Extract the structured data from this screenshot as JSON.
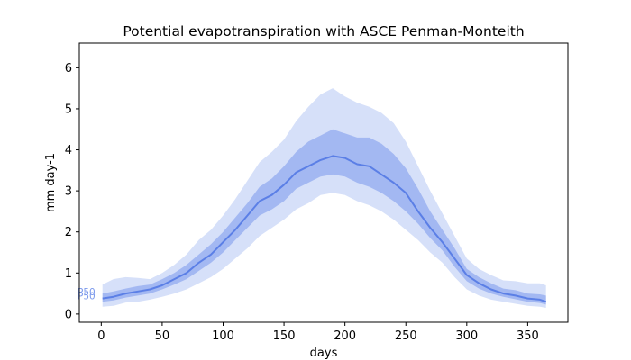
{
  "chart_data": {
    "type": "area",
    "title": "Potential evapotranspiration with ASCE Penman-Monteith",
    "xlabel": "days",
    "ylabel": "mm day-1",
    "xlim": [
      -18,
      383
    ],
    "ylim": [
      -0.2,
      6.6
    ],
    "xticks": [
      0,
      50,
      100,
      150,
      200,
      250,
      300,
      350
    ],
    "yticks": [
      0,
      1,
      2,
      3,
      4,
      5,
      6
    ],
    "grid": false,
    "colors": {
      "line": "#5b7fe6",
      "inner_band": "#7a98ec",
      "outer_band": "#c8d5f7"
    },
    "series_labels": [
      "P50",
      "P50"
    ],
    "x": [
      1,
      10,
      20,
      30,
      40,
      50,
      60,
      70,
      80,
      90,
      100,
      110,
      120,
      130,
      140,
      150,
      160,
      170,
      180,
      190,
      200,
      210,
      220,
      230,
      240,
      250,
      260,
      270,
      280,
      290,
      300,
      310,
      320,
      330,
      340,
      350,
      360,
      365
    ],
    "median": [
      0.38,
      0.42,
      0.5,
      0.55,
      0.6,
      0.7,
      0.85,
      1.0,
      1.25,
      1.45,
      1.75,
      2.05,
      2.4,
      2.75,
      2.9,
      3.15,
      3.45,
      3.6,
      3.75,
      3.85,
      3.8,
      3.65,
      3.6,
      3.4,
      3.2,
      2.95,
      2.5,
      2.1,
      1.75,
      1.35,
      0.95,
      0.75,
      0.6,
      0.5,
      0.45,
      0.38,
      0.35,
      0.3
    ],
    "p25": [
      0.3,
      0.33,
      0.4,
      0.45,
      0.5,
      0.6,
      0.72,
      0.85,
      1.05,
      1.25,
      1.5,
      1.8,
      2.1,
      2.4,
      2.55,
      2.75,
      3.05,
      3.2,
      3.35,
      3.4,
      3.35,
      3.2,
      3.1,
      2.95,
      2.75,
      2.5,
      2.2,
      1.85,
      1.55,
      1.15,
      0.8,
      0.62,
      0.5,
      0.42,
      0.36,
      0.3,
      0.27,
      0.23
    ],
    "p75": [
      0.5,
      0.55,
      0.62,
      0.68,
      0.72,
      0.85,
      1.0,
      1.2,
      1.45,
      1.7,
      2.0,
      2.35,
      2.7,
      3.1,
      3.3,
      3.6,
      3.95,
      4.2,
      4.35,
      4.5,
      4.4,
      4.3,
      4.3,
      4.15,
      3.9,
      3.55,
      3.05,
      2.5,
      2.05,
      1.6,
      1.1,
      0.9,
      0.75,
      0.62,
      0.58,
      0.5,
      0.48,
      0.45
    ],
    "p5": [
      0.18,
      0.2,
      0.28,
      0.3,
      0.35,
      0.42,
      0.5,
      0.6,
      0.75,
      0.9,
      1.1,
      1.35,
      1.6,
      1.9,
      2.1,
      2.3,
      2.55,
      2.7,
      2.9,
      2.95,
      2.9,
      2.75,
      2.65,
      2.5,
      2.3,
      2.05,
      1.8,
      1.5,
      1.25,
      0.9,
      0.6,
      0.45,
      0.35,
      0.3,
      0.25,
      0.2,
      0.18,
      0.15
    ],
    "p95": [
      0.72,
      0.85,
      0.9,
      0.88,
      0.85,
      1.0,
      1.2,
      1.45,
      1.8,
      2.05,
      2.4,
      2.8,
      3.25,
      3.7,
      3.95,
      4.25,
      4.7,
      5.05,
      5.35,
      5.5,
      5.3,
      5.15,
      5.05,
      4.9,
      4.65,
      4.2,
      3.6,
      3.0,
      2.45,
      1.9,
      1.35,
      1.1,
      0.95,
      0.82,
      0.8,
      0.75,
      0.75,
      0.7
    ]
  }
}
